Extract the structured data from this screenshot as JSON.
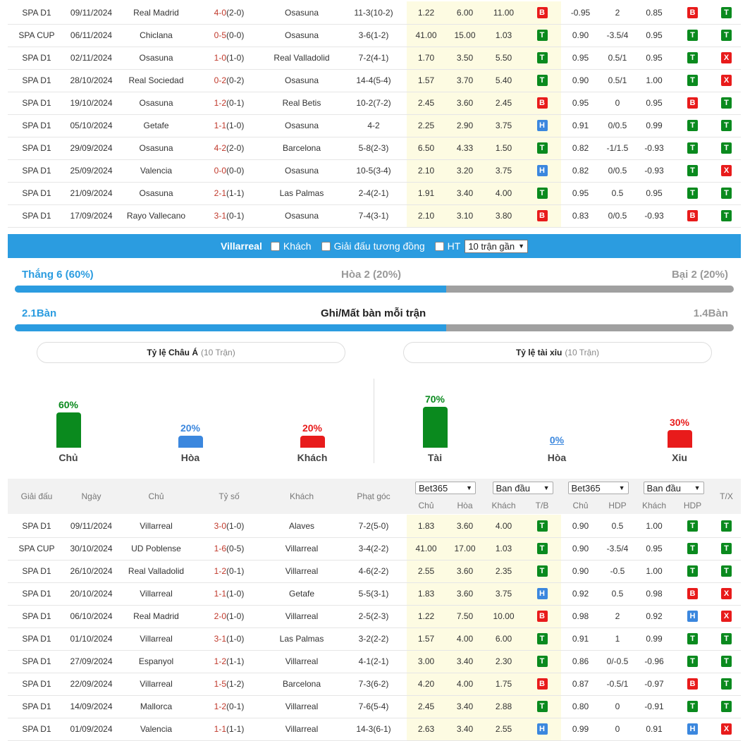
{
  "colors": {
    "accent": "#2b9ce0",
    "win": "#0a8a1e",
    "lose": "#e81b1b",
    "draw": "#3b87de",
    "highlight_team_home": "#e0734a",
    "highlight_team_vil": "#3b8edc"
  },
  "top_matches": [
    {
      "league": "SPA D1",
      "date": "09/11/2024",
      "home": "Real Madrid",
      "score": "4-0",
      "ht": "(2-0)",
      "away": "Osasuna",
      "corners": "11-3(10-2)",
      "o1": "1.22",
      "o2": "6.00",
      "o3": "11.00",
      "res": "B",
      "ah1": "-0.95",
      "ah2": "2",
      "ah3": "0.85",
      "hdp": "B",
      "tx": "T",
      "hl": "away"
    },
    {
      "league": "SPA CUP",
      "date": "06/11/2024",
      "home": "Chiclana",
      "score": "0-5",
      "ht": "(0-0)",
      "away": "Osasuna",
      "corners": "3-6(1-2)",
      "o1": "41.00",
      "o2": "15.00",
      "o3": "1.03",
      "res": "T",
      "ah1": "0.90",
      "ah2": "-3.5/4",
      "ah3": "0.95",
      "hdp": "T",
      "tx": "T",
      "hl": "away"
    },
    {
      "league": "SPA D1",
      "date": "02/11/2024",
      "home": "Osasuna",
      "score": "1-0",
      "ht": "(1-0)",
      "away": "Real Valladolid",
      "corners": "7-2(4-1)",
      "o1": "1.70",
      "o2": "3.50",
      "o3": "5.50",
      "res": "T",
      "ah1": "0.95",
      "ah2": "0.5/1",
      "ah3": "0.95",
      "hdp": "T",
      "tx": "X",
      "hl": "home"
    },
    {
      "league": "SPA D1",
      "date": "28/10/2024",
      "home": "Real Sociedad",
      "score": "0-2",
      "ht": "(0-2)",
      "away": "Osasuna",
      "corners": "14-4(5-4)",
      "o1": "1.57",
      "o2": "3.70",
      "o3": "5.40",
      "res": "T",
      "ah1": "0.90",
      "ah2": "0.5/1",
      "ah3": "1.00",
      "hdp": "T",
      "tx": "X",
      "hl": "away"
    },
    {
      "league": "SPA D1",
      "date": "19/10/2024",
      "home": "Osasuna",
      "score": "1-2",
      "ht": "(0-1)",
      "away": "Real Betis",
      "corners": "10-2(7-2)",
      "o1": "2.45",
      "o2": "3.60",
      "o3": "2.45",
      "res": "B",
      "ah1": "0.95",
      "ah2": "0",
      "ah3": "0.95",
      "hdp": "B",
      "tx": "T",
      "hl": "home"
    },
    {
      "league": "SPA D1",
      "date": "05/10/2024",
      "home": "Getafe",
      "score": "1-1",
      "ht": "(1-0)",
      "away": "Osasuna",
      "corners": "4-2",
      "o1": "2.25",
      "o2": "2.90",
      "o3": "3.75",
      "res": "H",
      "ah1": "0.91",
      "ah2": "0/0.5",
      "ah3": "0.99",
      "hdp": "T",
      "tx": "T",
      "hl": "away"
    },
    {
      "league": "SPA D1",
      "date": "29/09/2024",
      "home": "Osasuna",
      "score": "4-2",
      "ht": "(2-0)",
      "away": "Barcelona",
      "corners": "5-8(2-3)",
      "o1": "6.50",
      "o2": "4.33",
      "o3": "1.50",
      "res": "T",
      "ah1": "0.82",
      "ah2": "-1/1.5",
      "ah3": "-0.93",
      "hdp": "T",
      "tx": "T",
      "hl": "home"
    },
    {
      "league": "SPA D1",
      "date": "25/09/2024",
      "home": "Valencia",
      "score": "0-0",
      "ht": "(0-0)",
      "away": "Osasuna",
      "corners": "10-5(3-4)",
      "o1": "2.10",
      "o2": "3.20",
      "o3": "3.75",
      "res": "H",
      "ah1": "0.82",
      "ah2": "0/0.5",
      "ah3": "-0.93",
      "hdp": "T",
      "tx": "X",
      "hl": "away"
    },
    {
      "league": "SPA D1",
      "date": "21/09/2024",
      "home": "Osasuna",
      "score": "2-1",
      "ht": "(1-1)",
      "away": "Las Palmas",
      "corners": "2-4(2-1)",
      "o1": "1.91",
      "o2": "3.40",
      "o3": "4.00",
      "res": "T",
      "ah1": "0.95",
      "ah2": "0.5",
      "ah3": "0.95",
      "hdp": "T",
      "tx": "T",
      "hl": "home"
    },
    {
      "league": "SPA D1",
      "date": "17/09/2024",
      "home": "Rayo Vallecano",
      "score": "3-1",
      "ht": "(0-1)",
      "away": "Osasuna",
      "corners": "7-4(3-1)",
      "o1": "2.10",
      "o2": "3.10",
      "o3": "3.80",
      "res": "B",
      "ah1": "0.83",
      "ah2": "0/0.5",
      "ah3": "-0.93",
      "hdp": "B",
      "tx": "T",
      "hl": "away"
    }
  ],
  "filter": {
    "team": "Villarreal",
    "opt1": "Khách",
    "opt2": "Giải đấu tương đồng",
    "opt3": "HT",
    "select": "10 trận gần"
  },
  "summary": {
    "win": "Thắng 6 (60%)",
    "draw": "Hòa 2 (20%)",
    "lose": "Bại 2 (20%)",
    "win_frac": 0.6,
    "gf": "2.1Bàn",
    "ga": "1.4Bàn",
    "gfga_label": "Ghi/Mất bàn mỗi trận",
    "goal_frac": 0.6
  },
  "asian": {
    "title": "Tỷ lệ Châu Á",
    "sub": "(10 Trận)",
    "items": [
      {
        "pct": "60%",
        "label": "Chủ",
        "value": 60,
        "color": "#0a8a1e"
      },
      {
        "pct": "20%",
        "label": "Hòa",
        "value": 20,
        "color": "#3b87de"
      },
      {
        "pct": "20%",
        "label": "Khách",
        "value": 20,
        "color": "#e81b1b"
      }
    ]
  },
  "ou": {
    "title": "Tỷ lệ tài xỉu",
    "sub": "(10 Trận)",
    "items": [
      {
        "pct": "70%",
        "label": "Tài",
        "value": 70,
        "color": "#0a8a1e"
      },
      {
        "pct": "0%",
        "label": "Hòa",
        "value": 0,
        "color": "#3b87de"
      },
      {
        "pct": "30%",
        "label": "Xiu",
        "value": 30,
        "color": "#e81b1b"
      }
    ]
  },
  "header": {
    "league": "Giải đấu",
    "date": "Ngày",
    "home": "Chủ",
    "score": "Tỷ số",
    "away": "Khách",
    "corners": "Phạt góc",
    "bookie1": "Bet365",
    "type1": "Ban đầu",
    "bookie2": "Bet365",
    "type2": "Ban đầu",
    "tx": "T/X",
    "s_home": "Chủ",
    "s_draw": "Hòa",
    "s_away": "Khách",
    "s_tb": "T/B",
    "s_home2": "Chủ",
    "s_hdp": "HDP",
    "s_away2": "Khách",
    "s_hdp2": "HDP"
  },
  "bottom_matches": [
    {
      "league": "SPA D1",
      "date": "09/11/2024",
      "home": "Villarreal",
      "score": "3-0",
      "ht": "(1-0)",
      "away": "Alaves",
      "corners": "7-2(5-0)",
      "o1": "1.83",
      "o2": "3.60",
      "o3": "4.00",
      "res": "T",
      "ah1": "0.90",
      "ah2": "0.5",
      "ah3": "1.00",
      "hdp": "T",
      "tx": "T",
      "hl": "home"
    },
    {
      "league": "SPA CUP",
      "date": "30/10/2024",
      "home": "UD Poblense",
      "score": "1-6",
      "ht": "(0-5)",
      "away": "Villarreal",
      "corners": "3-4(2-2)",
      "o1": "41.00",
      "o2": "17.00",
      "o3": "1.03",
      "res": "T",
      "ah1": "0.90",
      "ah2": "-3.5/4",
      "ah3": "0.95",
      "hdp": "T",
      "tx": "T",
      "hl": "away"
    },
    {
      "league": "SPA D1",
      "date": "26/10/2024",
      "home": "Real Valladolid",
      "score": "1-2",
      "ht": "(0-1)",
      "away": "Villarreal",
      "corners": "4-6(2-2)",
      "o1": "2.55",
      "o2": "3.60",
      "o3": "2.35",
      "res": "T",
      "ah1": "0.90",
      "ah2": "-0.5",
      "ah3": "1.00",
      "hdp": "T",
      "tx": "T",
      "hl": "away"
    },
    {
      "league": "SPA D1",
      "date": "20/10/2024",
      "home": "Villarreal",
      "score": "1-1",
      "ht": "(1-0)",
      "away": "Getafe",
      "corners": "5-5(3-1)",
      "o1": "1.83",
      "o2": "3.60",
      "o3": "3.75",
      "res": "H",
      "ah1": "0.92",
      "ah2": "0.5",
      "ah3": "0.98",
      "hdp": "B",
      "tx": "X",
      "hl": "home"
    },
    {
      "league": "SPA D1",
      "date": "06/10/2024",
      "home": "Real Madrid",
      "score": "2-0",
      "ht": "(1-0)",
      "away": "Villarreal",
      "corners": "2-5(2-3)",
      "o1": "1.22",
      "o2": "7.50",
      "o3": "10.00",
      "res": "B",
      "ah1": "0.98",
      "ah2": "2",
      "ah3": "0.92",
      "hdp": "H",
      "tx": "X",
      "hl": "away"
    },
    {
      "league": "SPA D1",
      "date": "01/10/2024",
      "home": "Villarreal",
      "score": "3-1",
      "ht": "(1-0)",
      "away": "Las Palmas",
      "corners": "3-2(2-2)",
      "o1": "1.57",
      "o2": "4.00",
      "o3": "6.00",
      "res": "T",
      "ah1": "0.91",
      "ah2": "1",
      "ah3": "0.99",
      "hdp": "T",
      "tx": "T",
      "hl": "home"
    },
    {
      "league": "SPA D1",
      "date": "27/09/2024",
      "home": "Espanyol",
      "score": "1-2",
      "ht": "(1-1)",
      "away": "Villarreal",
      "corners": "4-1(2-1)",
      "o1": "3.00",
      "o2": "3.40",
      "o3": "2.30",
      "res": "T",
      "ah1": "0.86",
      "ah2": "0/-0.5",
      "ah3": "-0.96",
      "hdp": "T",
      "tx": "T",
      "hl": "away"
    },
    {
      "league": "SPA D1",
      "date": "22/09/2024",
      "home": "Villarreal",
      "score": "1-5",
      "ht": "(1-2)",
      "away": "Barcelona",
      "corners": "7-3(6-2)",
      "o1": "4.20",
      "o2": "4.00",
      "o3": "1.75",
      "res": "B",
      "ah1": "0.87",
      "ah2": "-0.5/1",
      "ah3": "-0.97",
      "hdp": "B",
      "tx": "T",
      "hl": "home"
    },
    {
      "league": "SPA D1",
      "date": "14/09/2024",
      "home": "Mallorca",
      "score": "1-2",
      "ht": "(0-1)",
      "away": "Villarreal",
      "corners": "7-6(5-4)",
      "o1": "2.45",
      "o2": "3.40",
      "o3": "2.88",
      "res": "T",
      "ah1": "0.80",
      "ah2": "0",
      "ah3": "-0.91",
      "hdp": "T",
      "tx": "T",
      "hl": "away"
    },
    {
      "league": "SPA D1",
      "date": "01/09/2024",
      "home": "Valencia",
      "score": "1-1",
      "ht": "(1-1)",
      "away": "Villarreal",
      "corners": "14-3(6-1)",
      "o1": "2.63",
      "o2": "3.40",
      "o3": "2.55",
      "res": "H",
      "ah1": "0.99",
      "ah2": "0",
      "ah3": "0.91",
      "hdp": "H",
      "tx": "X",
      "hl": "away"
    }
  ]
}
